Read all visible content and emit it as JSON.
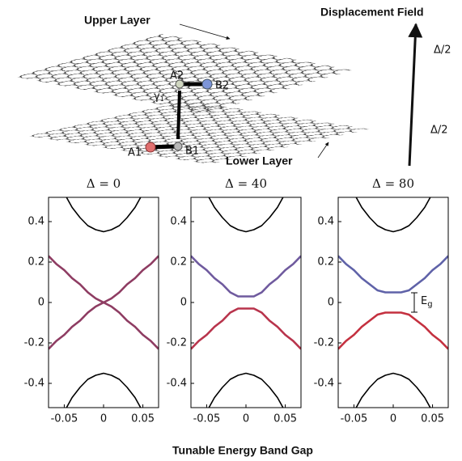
{
  "diagram": {
    "upper_label": "Upper Layer",
    "lower_label": "Lower Layer",
    "field_label": "Displacement Field",
    "upper_potential": "Δ/2",
    "lower_potential": "Δ/2",
    "atoms": [
      "A1",
      "B1",
      "A2",
      "B2"
    ],
    "coupling": "γ",
    "coupling_sub": "1"
  },
  "caption": "Tunable Energy Band Gap",
  "chart_data": [
    {
      "type": "line",
      "title": "Δ = 0",
      "x": [
        -0.07,
        -0.06,
        -0.05,
        -0.04,
        -0.03,
        -0.02,
        -0.01,
        0,
        0.01,
        0.02,
        0.03,
        0.04,
        0.05,
        0.06,
        0.07
      ],
      "series": [
        {
          "color": "#000000",
          "values": [
            null,
            null,
            0.54,
            0.47,
            0.42,
            0.38,
            0.36,
            0.35,
            0.36,
            0.38,
            0.42,
            0.47,
            0.54,
            null,
            null
          ]
        },
        {
          "color": "#000000",
          "values": [
            null,
            null,
            -0.54,
            -0.47,
            -0.42,
            -0.38,
            -0.36,
            -0.35,
            -0.36,
            -0.38,
            -0.42,
            -0.47,
            -0.54,
            null,
            null
          ]
        },
        {
          "color": "#8e3c62",
          "values": [
            0.23,
            0.19,
            0.16,
            0.12,
            0.09,
            0.05,
            0.02,
            0,
            0.02,
            0.05,
            0.09,
            0.12,
            0.16,
            0.19,
            0.23
          ]
        },
        {
          "color": "#8e3c62",
          "values": [
            -0.23,
            -0.19,
            -0.16,
            -0.12,
            -0.09,
            -0.05,
            -0.02,
            0,
            -0.02,
            -0.05,
            -0.09,
            -0.12,
            -0.16,
            -0.19,
            -0.23
          ]
        }
      ],
      "xlim": [
        -0.07,
        0.07
      ],
      "ylim": [
        -0.52,
        0.52
      ],
      "xticks": [
        -0.05,
        0,
        0.05
      ],
      "yticks": [
        -0.4,
        -0.2,
        0,
        0.2,
        0.4
      ]
    },
    {
      "type": "line",
      "title": "Δ = 40",
      "x": [
        -0.07,
        -0.06,
        -0.05,
        -0.04,
        -0.03,
        -0.02,
        -0.01,
        0,
        0.01,
        0.02,
        0.03,
        0.04,
        0.05,
        0.06,
        0.07
      ],
      "series": [
        {
          "color": "#000000",
          "values": [
            null,
            null,
            0.54,
            0.47,
            0.42,
            0.38,
            0.36,
            0.35,
            0.36,
            0.38,
            0.42,
            0.47,
            0.54,
            null,
            null
          ]
        },
        {
          "color": "#000000",
          "values": [
            null,
            null,
            -0.54,
            -0.47,
            -0.42,
            -0.38,
            -0.36,
            -0.35,
            -0.36,
            -0.38,
            -0.42,
            -0.47,
            -0.54,
            null,
            null
          ]
        },
        {
          "color": "#6f5a9e",
          "values": [
            0.23,
            0.19,
            0.16,
            0.12,
            0.09,
            0.05,
            0.03,
            0.03,
            0.03,
            0.05,
            0.09,
            0.12,
            0.16,
            0.19,
            0.23
          ]
        },
        {
          "color": "#b8344c",
          "values": [
            -0.23,
            -0.19,
            -0.16,
            -0.12,
            -0.09,
            -0.05,
            -0.03,
            -0.03,
            -0.03,
            -0.05,
            -0.09,
            -0.12,
            -0.16,
            -0.19,
            -0.23
          ]
        }
      ],
      "xlim": [
        -0.07,
        0.07
      ],
      "ylim": [
        -0.52,
        0.52
      ],
      "xticks": [
        -0.05,
        0,
        0.05
      ],
      "yticks": [
        -0.4,
        -0.2,
        0,
        0.2,
        0.4
      ]
    },
    {
      "type": "line",
      "title": "Δ = 80",
      "x": [
        -0.07,
        -0.06,
        -0.05,
        -0.04,
        -0.03,
        -0.02,
        -0.01,
        0,
        0.01,
        0.02,
        0.03,
        0.04,
        0.05,
        0.06,
        0.07
      ],
      "series": [
        {
          "color": "#000000",
          "values": [
            null,
            null,
            0.54,
            0.47,
            0.42,
            0.38,
            0.36,
            0.35,
            0.36,
            0.38,
            0.42,
            0.47,
            0.54,
            null,
            null
          ]
        },
        {
          "color": "#000000",
          "values": [
            null,
            null,
            -0.54,
            -0.47,
            -0.42,
            -0.38,
            -0.36,
            -0.35,
            -0.36,
            -0.38,
            -0.42,
            -0.47,
            -0.54,
            null,
            null
          ]
        },
        {
          "color": "#5f62a8",
          "values": [
            0.23,
            0.19,
            0.16,
            0.12,
            0.09,
            0.06,
            0.05,
            0.05,
            0.05,
            0.06,
            0.09,
            0.12,
            0.16,
            0.19,
            0.23
          ]
        },
        {
          "color": "#c4303f",
          "values": [
            -0.23,
            -0.19,
            -0.16,
            -0.12,
            -0.09,
            -0.06,
            -0.05,
            -0.05,
            -0.05,
            -0.06,
            -0.09,
            -0.12,
            -0.16,
            -0.19,
            -0.23
          ]
        }
      ],
      "xlim": [
        -0.07,
        0.07
      ],
      "ylim": [
        -0.52,
        0.52
      ],
      "xticks": [
        -0.05,
        0,
        0.05
      ],
      "yticks": [
        -0.4,
        -0.2,
        0,
        0.2,
        0.4
      ],
      "annotation": "E",
      "annotation_sub": "g"
    }
  ]
}
